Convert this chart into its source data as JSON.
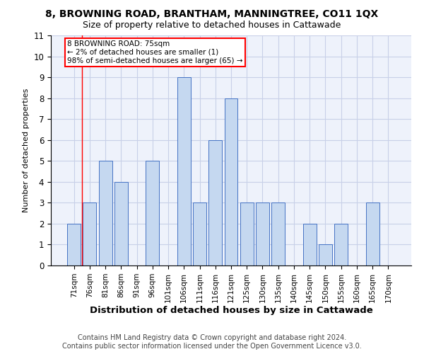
{
  "title1": "8, BROWNING ROAD, BRANTHAM, MANNINGTREE, CO11 1QX",
  "title2": "Size of property relative to detached houses in Cattawade",
  "xlabel": "Distribution of detached houses by size in Cattawade",
  "ylabel": "Number of detached properties",
  "categories": [
    "71sqm",
    "76sqm",
    "81sqm",
    "86sqm",
    "91sqm",
    "96sqm",
    "101sqm",
    "106sqm",
    "111sqm",
    "116sqm",
    "121sqm",
    "125sqm",
    "130sqm",
    "135sqm",
    "140sqm",
    "145sqm",
    "150sqm",
    "155sqm",
    "160sqm",
    "165sqm",
    "170sqm"
  ],
  "values": [
    2,
    3,
    5,
    4,
    0,
    5,
    0,
    9,
    3,
    6,
    8,
    3,
    3,
    3,
    0,
    2,
    1,
    2,
    0,
    3,
    0
  ],
  "bar_color": "#c5d8f0",
  "bar_edge_color": "#4472c4",
  "annotation_text": "8 BROWNING ROAD: 75sqm\n← 2% of detached houses are smaller (1)\n98% of semi-detached houses are larger (65) →",
  "ylim": [
    0,
    11
  ],
  "yticks": [
    0,
    1,
    2,
    3,
    4,
    5,
    6,
    7,
    8,
    9,
    10,
    11
  ],
  "footer1": "Contains HM Land Registry data © Crown copyright and database right 2024.",
  "footer2": "Contains public sector information licensed under the Open Government Licence v3.0.",
  "bg_color": "#eef2fb",
  "grid_color": "#c8d0e8",
  "title1_fontsize": 10,
  "title2_fontsize": 9,
  "xlabel_fontsize": 9.5,
  "ylabel_fontsize": 8,
  "tick_fontsize": 7.5,
  "footer_fontsize": 7,
  "red_line_x": 0.5
}
